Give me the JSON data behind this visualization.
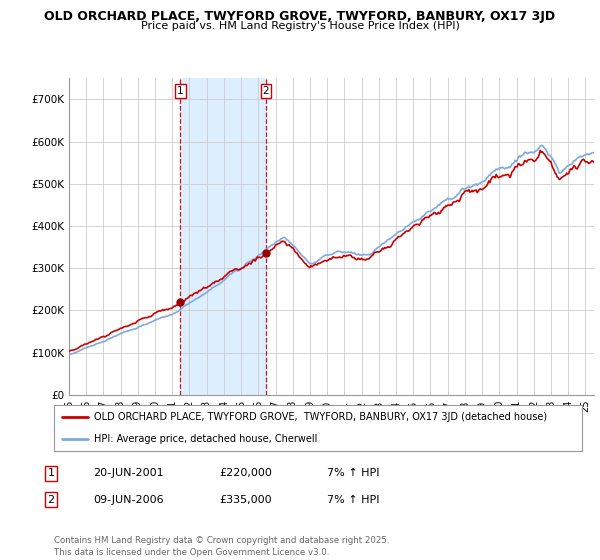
{
  "title": "OLD ORCHARD PLACE, TWYFORD GROVE, TWYFORD, BANBURY, OX17 3JD",
  "subtitle": "Price paid vs. HM Land Registry's House Price Index (HPI)",
  "yticks": [
    0,
    100000,
    200000,
    300000,
    400000,
    500000,
    600000,
    700000
  ],
  "ytick_labels": [
    "£0",
    "£100K",
    "£200K",
    "£300K",
    "£400K",
    "£500K",
    "£600K",
    "£700K"
  ],
  "background_color": "#ffffff",
  "grid_color": "#cccccc",
  "hpi_color": "#7faadd",
  "price_color": "#cc0000",
  "vline_color": "#cc0000",
  "shade_color": "#ddeeff",
  "transaction1_date": 2001.47,
  "transaction1_price": 220000,
  "transaction2_date": 2006.44,
  "transaction2_price": 335000,
  "legend_line1": "OLD ORCHARD PLACE, TWYFORD GROVE,  TWYFORD, BANBURY, OX17 3JD (detached house)",
  "legend_line2": "HPI: Average price, detached house, Cherwell",
  "table_rows": [
    [
      "1",
      "20-JUN-2001",
      "£220,000",
      "7% ↑ HPI"
    ],
    [
      "2",
      "09-JUN-2006",
      "£335,000",
      "7% ↑ HPI"
    ]
  ],
  "footer": "Contains HM Land Registry data © Crown copyright and database right 2025.\nThis data is licensed under the Open Government Licence v3.0.",
  "xmin": 1995,
  "xmax": 2025.5,
  "ymin": 0,
  "ymax": 750000
}
